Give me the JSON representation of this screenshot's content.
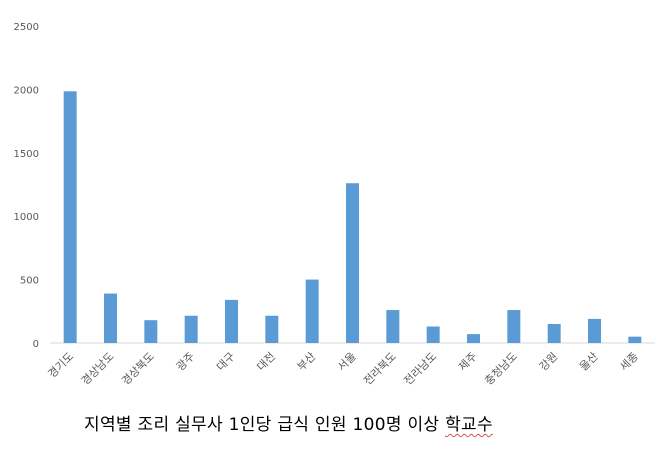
{
  "chart_data": {
    "type": "bar",
    "categories": [
      "경기도",
      "경상남도",
      "경상북도",
      "광주",
      "대구",
      "대전",
      "부산",
      "서울",
      "전라북도",
      "전라남도",
      "제주",
      "충청남도",
      "강원",
      "울산",
      "세종"
    ],
    "values": [
      1985,
      390,
      180,
      215,
      340,
      215,
      500,
      1260,
      260,
      130,
      70,
      260,
      150,
      190,
      50
    ],
    "ylim": [
      0,
      2500
    ],
    "yticks": [
      0,
      500,
      1000,
      1500,
      2000,
      2500
    ],
    "grid": false,
    "legend": "none",
    "bar_color": "#5b9bd5",
    "axis_color": "#d9d9d9"
  },
  "caption": {
    "main": "지역별 조리 실무사 1인당 급식 인원 100명 이상 ",
    "underlined": "학교수"
  }
}
